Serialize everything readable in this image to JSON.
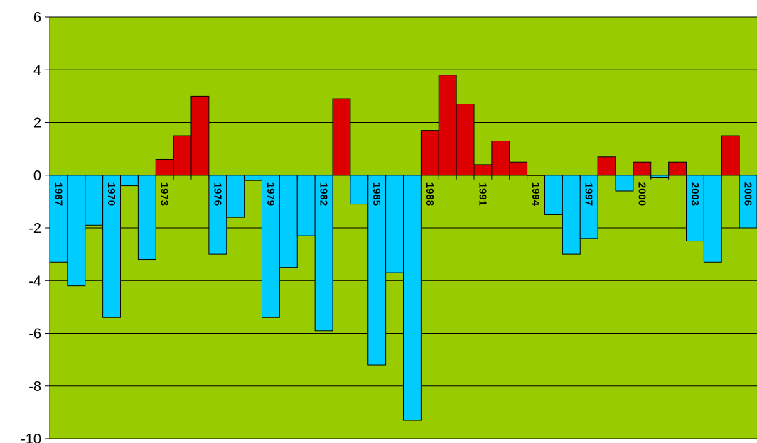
{
  "chart_data": {
    "type": "bar",
    "title": "",
    "xlabel": "",
    "ylabel": "",
    "ylim": [
      -10,
      6
    ],
    "yticks": [
      -10,
      -8,
      -6,
      -4,
      -2,
      0,
      2,
      4,
      6
    ],
    "grid": true,
    "legend": "none",
    "colors": {
      "plot_background": "#99cc00",
      "positive": "#dd0000",
      "negative": "#00ccff",
      "gridline": "#000000",
      "bar_outline": "#000000"
    },
    "categories": [
      "1967",
      "1968",
      "1969",
      "1970",
      "1971",
      "1972",
      "1973",
      "1974",
      "1975",
      "1976",
      "1977",
      "1978",
      "1979",
      "1980",
      "1981",
      "1982",
      "1983",
      "1984",
      "1985",
      "1986",
      "1987",
      "1988",
      "1989",
      "1990",
      "1991",
      "1992",
      "1993",
      "1994",
      "1995",
      "1996",
      "1997",
      "1998",
      "1999",
      "2000",
      "2001",
      "2002",
      "2003",
      "2004",
      "2005",
      "2006"
    ],
    "tick_labels": [
      "1967",
      "1970",
      "1973",
      "1976",
      "1979",
      "1982",
      "1985",
      "1988",
      "1991",
      "1994",
      "1997",
      "2000",
      "2003",
      "2006"
    ],
    "values": [
      -3.3,
      -4.2,
      -1.9,
      -5.4,
      -0.4,
      -3.2,
      0.6,
      1.5,
      3.0,
      -3.0,
      -1.6,
      -0.2,
      -5.4,
      -3.5,
      -2.3,
      -5.9,
      2.9,
      -1.1,
      -7.2,
      -3.7,
      -9.3,
      1.7,
      3.8,
      2.7,
      0.4,
      1.3,
      0.5,
      0.0,
      -1.5,
      -3.0,
      -2.4,
      0.7,
      -0.6,
      0.5,
      -0.1,
      0.5,
      -2.5,
      -3.3,
      1.5,
      -2.0
    ]
  }
}
